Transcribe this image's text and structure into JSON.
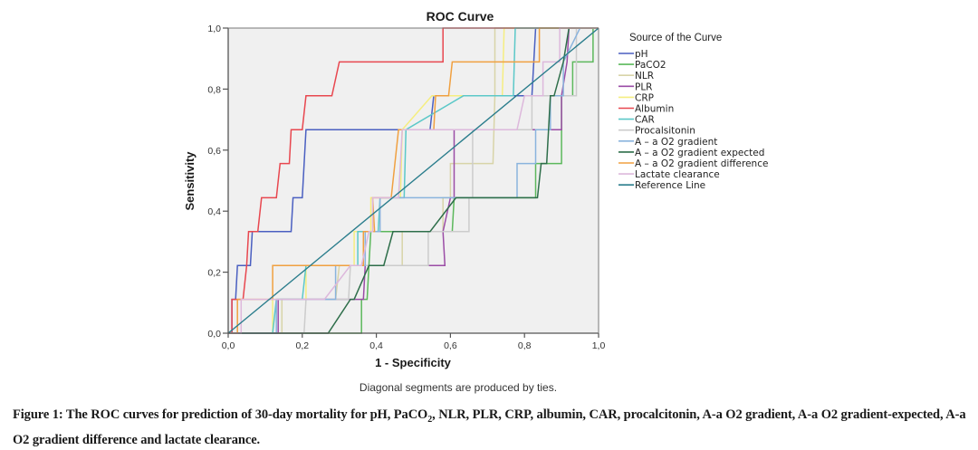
{
  "chart_data": {
    "type": "line",
    "title": "ROC Curve",
    "xlabel": "1 - Specificity",
    "ylabel": "Sensitivity",
    "xlim": [
      0,
      1
    ],
    "ylim": [
      0,
      1
    ],
    "xticks": [
      "0,0",
      "0,2",
      "0,4",
      "0,6",
      "0,8",
      "1,0"
    ],
    "yticks": [
      "0,0",
      "0,2",
      "0,4",
      "0,6",
      "0,8",
      "1,0"
    ],
    "xtick_values": [
      0,
      0.2,
      0.4,
      0.6,
      0.8,
      1.0
    ],
    "ytick_values": [
      0,
      0.2,
      0.4,
      0.6,
      0.8,
      1.0
    ],
    "grid": false,
    "note": "Diagonal segments are produced by ties.",
    "legend_title": "Source of the Curve",
    "legend_position": "right",
    "series": [
      {
        "name": "pH",
        "color": "#4a5fc1",
        "points": [
          [
            0,
            0
          ],
          [
            0.01,
            0
          ],
          [
            0.01,
            0.111
          ],
          [
            0.02,
            0.111
          ],
          [
            0.025,
            0.222
          ],
          [
            0.06,
            0.222
          ],
          [
            0.065,
            0.333
          ],
          [
            0.17,
            0.333
          ],
          [
            0.175,
            0.444
          ],
          [
            0.2,
            0.444
          ],
          [
            0.21,
            0.667
          ],
          [
            0.545,
            0.667
          ],
          [
            0.555,
            0.778
          ],
          [
            0.82,
            0.778
          ],
          [
            0.83,
            1.0
          ],
          [
            1,
            1
          ]
        ]
      },
      {
        "name": "PaCO2",
        "color": "#5cb85c",
        "points": [
          [
            0,
            0
          ],
          [
            0.36,
            0
          ],
          [
            0.36,
            0.111
          ],
          [
            0.375,
            0.111
          ],
          [
            0.38,
            0.222
          ],
          [
            0.385,
            0.333
          ],
          [
            0.41,
            0.333
          ],
          [
            0.605,
            0.333
          ],
          [
            0.61,
            0.444
          ],
          [
            0.83,
            0.444
          ],
          [
            0.83,
            0.556
          ],
          [
            0.9,
            0.556
          ],
          [
            0.9,
            0.778
          ],
          [
            0.93,
            0.778
          ],
          [
            0.93,
            0.889
          ],
          [
            0.985,
            0.889
          ],
          [
            0.985,
            1.0
          ],
          [
            1,
            1
          ]
        ]
      },
      {
        "name": "NLR",
        "color": "#d8d4a8",
        "points": [
          [
            0,
            0
          ],
          [
            0.145,
            0
          ],
          [
            0.145,
            0.111
          ],
          [
            0.29,
            0.111
          ],
          [
            0.3,
            0.222
          ],
          [
            0.47,
            0.222
          ],
          [
            0.47,
            0.333
          ],
          [
            0.58,
            0.333
          ],
          [
            0.58,
            0.444
          ],
          [
            0.6,
            0.444
          ],
          [
            0.6,
            0.556
          ],
          [
            0.715,
            0.556
          ],
          [
            0.72,
            0.778
          ],
          [
            0.72,
            1.0
          ],
          [
            1,
            1
          ]
        ]
      },
      {
        "name": "PLR",
        "color": "#9b4da6",
        "points": [
          [
            0,
            0
          ],
          [
            0.135,
            0
          ],
          [
            0.135,
            0.111
          ],
          [
            0.365,
            0.111
          ],
          [
            0.37,
            0.222
          ],
          [
            0.585,
            0.222
          ],
          [
            0.58,
            0.333
          ],
          [
            0.6,
            0.444
          ],
          [
            0.61,
            0.444
          ],
          [
            0.61,
            0.667
          ],
          [
            0.9,
            0.667
          ],
          [
            0.9,
            0.778
          ],
          [
            0.915,
            0.889
          ],
          [
            0.92,
            1.0
          ],
          [
            1,
            1
          ]
        ]
      },
      {
        "name": "CRP",
        "color": "#f5ee80",
        "points": [
          [
            0,
            0
          ],
          [
            0.12,
            0
          ],
          [
            0.12,
            0.111
          ],
          [
            0.21,
            0.111
          ],
          [
            0.21,
            0.222
          ],
          [
            0.34,
            0.222
          ],
          [
            0.34,
            0.333
          ],
          [
            0.385,
            0.333
          ],
          [
            0.385,
            0.444
          ],
          [
            0.465,
            0.444
          ],
          [
            0.47,
            0.667
          ],
          [
            0.55,
            0.778
          ],
          [
            0.74,
            0.778
          ],
          [
            0.745,
            1.0
          ],
          [
            1,
            1
          ]
        ]
      },
      {
        "name": "Albumin",
        "color": "#e8474f",
        "points": [
          [
            0,
            0
          ],
          [
            0.01,
            0
          ],
          [
            0.01,
            0.111
          ],
          [
            0.04,
            0.111
          ],
          [
            0.05,
            0.222
          ],
          [
            0.055,
            0.333
          ],
          [
            0.08,
            0.333
          ],
          [
            0.09,
            0.444
          ],
          [
            0.13,
            0.444
          ],
          [
            0.14,
            0.556
          ],
          [
            0.165,
            0.556
          ],
          [
            0.17,
            0.667
          ],
          [
            0.2,
            0.667
          ],
          [
            0.21,
            0.778
          ],
          [
            0.28,
            0.778
          ],
          [
            0.3,
            0.889
          ],
          [
            0.58,
            0.889
          ],
          [
            0.58,
            1.0
          ],
          [
            1,
            1
          ]
        ]
      },
      {
        "name": "CAR",
        "color": "#5bc8c8",
        "points": [
          [
            0,
            0
          ],
          [
            0.12,
            0
          ],
          [
            0.13,
            0.111
          ],
          [
            0.2,
            0.111
          ],
          [
            0.21,
            0.222
          ],
          [
            0.35,
            0.222
          ],
          [
            0.35,
            0.333
          ],
          [
            0.405,
            0.333
          ],
          [
            0.41,
            0.444
          ],
          [
            0.475,
            0.444
          ],
          [
            0.48,
            0.667
          ],
          [
            0.635,
            0.778
          ],
          [
            0.77,
            0.778
          ],
          [
            0.775,
            1.0
          ],
          [
            1,
            1
          ]
        ]
      },
      {
        "name": "Procalsitonin",
        "color": "#cccccc",
        "points": [
          [
            0,
            0
          ],
          [
            0.205,
            0
          ],
          [
            0.21,
            0.111
          ],
          [
            0.325,
            0.111
          ],
          [
            0.33,
            0.222
          ],
          [
            0.54,
            0.222
          ],
          [
            0.54,
            0.333
          ],
          [
            0.65,
            0.333
          ],
          [
            0.65,
            0.444
          ],
          [
            0.66,
            0.444
          ],
          [
            0.66,
            0.667
          ],
          [
            0.82,
            0.667
          ],
          [
            0.82,
            0.778
          ],
          [
            0.94,
            0.778
          ],
          [
            0.94,
            1.0
          ],
          [
            1,
            1
          ]
        ]
      },
      {
        "name": "A – a O2 gradient",
        "color": "#8ab4dd",
        "points": [
          [
            0,
            0
          ],
          [
            0.13,
            0
          ],
          [
            0.13,
            0.111
          ],
          [
            0.29,
            0.111
          ],
          [
            0.29,
            0.222
          ],
          [
            0.37,
            0.222
          ],
          [
            0.37,
            0.333
          ],
          [
            0.41,
            0.333
          ],
          [
            0.41,
            0.444
          ],
          [
            0.78,
            0.444
          ],
          [
            0.78,
            0.556
          ],
          [
            0.83,
            0.556
          ],
          [
            0.83,
            0.667
          ],
          [
            0.87,
            0.667
          ],
          [
            0.87,
            0.778
          ],
          [
            0.905,
            0.778
          ],
          [
            0.905,
            0.889
          ],
          [
            0.95,
            1.0
          ],
          [
            1,
            1
          ]
        ]
      },
      {
        "name": "A – a O2 gradient expected",
        "color": "#2e6e4a",
        "points": [
          [
            0,
            0
          ],
          [
            0.27,
            0
          ],
          [
            0.33,
            0.111
          ],
          [
            0.34,
            0.111
          ],
          [
            0.38,
            0.222
          ],
          [
            0.42,
            0.222
          ],
          [
            0.445,
            0.333
          ],
          [
            0.545,
            0.333
          ],
          [
            0.615,
            0.444
          ],
          [
            0.835,
            0.444
          ],
          [
            0.845,
            0.556
          ],
          [
            0.86,
            0.556
          ],
          [
            0.87,
            0.778
          ],
          [
            0.88,
            0.778
          ],
          [
            0.905,
            0.889
          ],
          [
            0.92,
            1.0
          ],
          [
            1,
            1
          ]
        ]
      },
      {
        "name": "A – a O2 gradient difference",
        "color": "#f0a040",
        "points": [
          [
            0,
            0
          ],
          [
            0.025,
            0
          ],
          [
            0.025,
            0.111
          ],
          [
            0.12,
            0.111
          ],
          [
            0.12,
            0.222
          ],
          [
            0.365,
            0.222
          ],
          [
            0.365,
            0.333
          ],
          [
            0.395,
            0.333
          ],
          [
            0.39,
            0.444
          ],
          [
            0.44,
            0.444
          ],
          [
            0.46,
            0.667
          ],
          [
            0.555,
            0.667
          ],
          [
            0.56,
            0.778
          ],
          [
            0.595,
            0.778
          ],
          [
            0.605,
            0.889
          ],
          [
            0.84,
            0.889
          ],
          [
            0.84,
            1.0
          ],
          [
            1,
            1
          ]
        ]
      },
      {
        "name": "Lactate clearance",
        "color": "#ddb8dc",
        "points": [
          [
            0,
            0
          ],
          [
            0.035,
            0
          ],
          [
            0.035,
            0.111
          ],
          [
            0.26,
            0.111
          ],
          [
            0.33,
            0.222
          ],
          [
            0.36,
            0.222
          ],
          [
            0.38,
            0.333
          ],
          [
            0.39,
            0.333
          ],
          [
            0.39,
            0.444
          ],
          [
            0.46,
            0.444
          ],
          [
            0.47,
            0.667
          ],
          [
            0.78,
            0.667
          ],
          [
            0.8,
            0.778
          ],
          [
            0.85,
            0.778
          ],
          [
            0.85,
            0.889
          ],
          [
            0.895,
            0.889
          ],
          [
            0.895,
            1.0
          ],
          [
            1,
            1
          ]
        ]
      },
      {
        "name": "Reference Line",
        "color": "#2a7d8c",
        "points": [
          [
            0,
            0
          ],
          [
            1,
            1
          ]
        ]
      }
    ]
  },
  "caption": {
    "prefix": "Figure 1: The ROC curves for prediction of 30-day mortality for pH, PaCO",
    "subscript": "2",
    "suffix": ", NLR, PLR, CRP, albumin, CAR, procalcitonin, A-a O2 gradient, A-a O2 gradient-expected, A-a O2 gradient difference and lactate clearance."
  }
}
